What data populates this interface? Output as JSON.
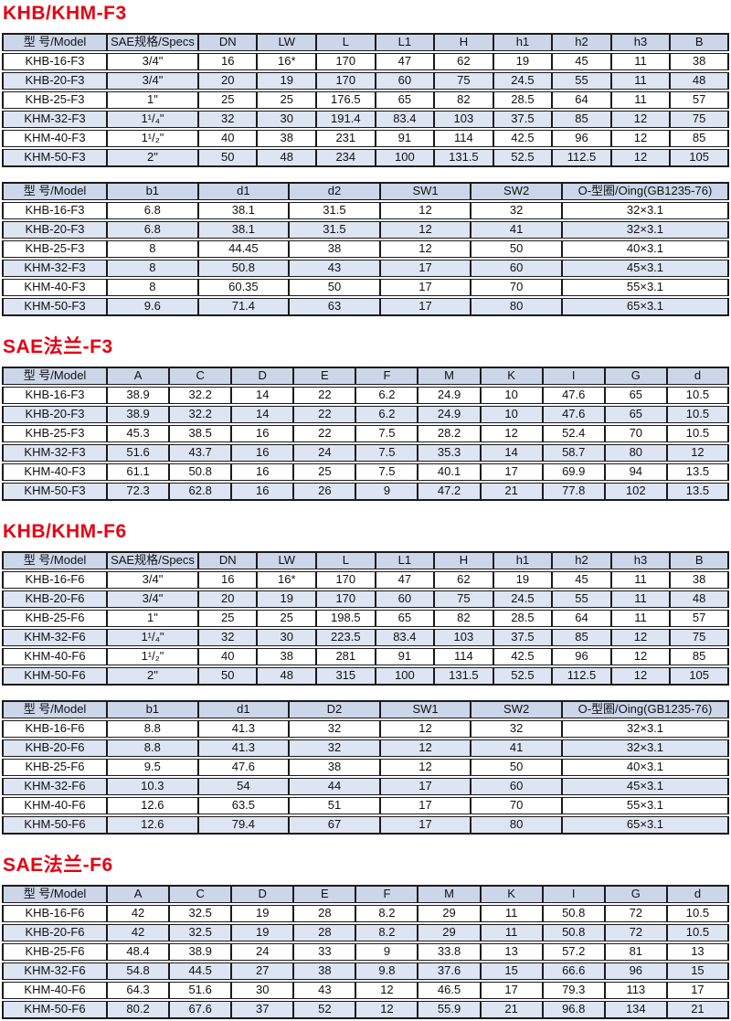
{
  "colors": {
    "title_red": "#e60012",
    "header_bg": "#ccd6e9",
    "stripe_bg": "#dde4f2",
    "border": "#1b1b1b"
  },
  "sections": [
    {
      "title": "KHB/KHM-F3",
      "tables": [
        {
          "columns": [
            "型 号/Model",
            "SAE规格/Specs",
            "DN",
            "LW",
            "L",
            "L1",
            "H",
            "h1",
            "h2",
            "h3",
            "B"
          ],
          "rows": [
            [
              "KHB-16-F3",
              "3/4\"",
              "16",
              "16*",
              "170",
              "47",
              "62",
              "19",
              "45",
              "11",
              "38"
            ],
            [
              "KHB-20-F3",
              "3/4\"",
              "20",
              "19",
              "170",
              "60",
              "75",
              "24.5",
              "55",
              "11",
              "48"
            ],
            [
              "KHB-25-F3",
              "1\"",
              "25",
              "25",
              "176.5",
              "65",
              "82",
              "28.5",
              "64",
              "11",
              "57"
            ],
            [
              "KHM-32-F3",
              "1¹/₄\"",
              "32",
              "30",
              "191.4",
              "83.4",
              "103",
              "37.5",
              "85",
              "12",
              "75"
            ],
            [
              "KHM-40-F3",
              "1¹/₂\"",
              "40",
              "38",
              "231",
              "91",
              "114",
              "42.5",
              "96",
              "12",
              "85"
            ],
            [
              "KHM-50-F3",
              "2\"",
              "50",
              "48",
              "234",
              "100",
              "131.5",
              "52.5",
              "112.5",
              "12",
              "105"
            ]
          ]
        },
        {
          "columns": [
            "型 号/Model",
            "b1",
            "d1",
            "d2",
            "SW1",
            "SW2",
            "O-型圈/Oing(GB1235-76)"
          ],
          "rows": [
            [
              "KHB-16-F3",
              "6.8",
              "38.1",
              "31.5",
              "12",
              "32",
              "32×3.1"
            ],
            [
              "KHB-20-F3",
              "6.8",
              "38.1",
              "31.5",
              "12",
              "41",
              "32×3.1"
            ],
            [
              "KHB-25-F3",
              "8",
              "44.45",
              "38",
              "12",
              "50",
              "40×3.1"
            ],
            [
              "KHM-32-F3",
              "8",
              "50.8",
              "43",
              "17",
              "60",
              "45×3.1"
            ],
            [
              "KHM-40-F3",
              "8",
              "60.35",
              "50",
              "17",
              "70",
              "55×3.1"
            ],
            [
              "KHM-50-F3",
              "9.6",
              "71.4",
              "63",
              "17",
              "80",
              "65×3.1"
            ]
          ]
        }
      ]
    },
    {
      "title": "SAE法兰-F3",
      "tables": [
        {
          "columns": [
            "型 号/Model",
            "A",
            "C",
            "D",
            "E",
            "F",
            "M",
            "K",
            "I",
            "G",
            "d"
          ],
          "rows": [
            [
              "KHB-16-F3",
              "38.9",
              "32.2",
              "14",
              "22",
              "6.2",
              "24.9",
              "10",
              "47.6",
              "65",
              "10.5"
            ],
            [
              "KHB-20-F3",
              "38.9",
              "32.2",
              "14",
              "22",
              "6.2",
              "24.9",
              "10",
              "47.6",
              "65",
              "10.5"
            ],
            [
              "KHB-25-F3",
              "45.3",
              "38.5",
              "16",
              "22",
              "7.5",
              "28.2",
              "12",
              "52.4",
              "70",
              "10.5"
            ],
            [
              "KHM-32-F3",
              "51.6",
              "43.7",
              "16",
              "24",
              "7.5",
              "35.3",
              "14",
              "58.7",
              "80",
              "12"
            ],
            [
              "KHM-40-F3",
              "61.1",
              "50.8",
              "16",
              "25",
              "7.5",
              "40.1",
              "17",
              "69.9",
              "94",
              "13.5"
            ],
            [
              "KHM-50-F3",
              "72.3",
              "62.8",
              "16",
              "26",
              "9",
              "47.2",
              "21",
              "77.8",
              "102",
              "13.5"
            ]
          ]
        }
      ]
    },
    {
      "title": "KHB/KHM-F6",
      "tables": [
        {
          "columns": [
            "型 号/Model",
            "SAE规格/Specs",
            "DN",
            "LW",
            "L",
            "L1",
            "H",
            "h1",
            "h2",
            "h3",
            "B"
          ],
          "rows": [
            [
              "KHB-16-F6",
              "3/4\"",
              "16",
              "16*",
              "170",
              "47",
              "62",
              "19",
              "45",
              "11",
              "38"
            ],
            [
              "KHB-20-F6",
              "3/4\"",
              "20",
              "19",
              "170",
              "60",
              "75",
              "24.5",
              "55",
              "11",
              "48"
            ],
            [
              "KHB-25-F6",
              "1\"",
              "25",
              "25",
              "198.5",
              "65",
              "82",
              "28.5",
              "64",
              "11",
              "57"
            ],
            [
              "KHM-32-F6",
              "1¹/₄\"",
              "32",
              "30",
              "223.5",
              "83.4",
              "103",
              "37.5",
              "85",
              "12",
              "75"
            ],
            [
              "KHM-40-F6",
              "1¹/₂\"",
              "40",
              "38",
              "281",
              "91",
              "114",
              "42.5",
              "96",
              "12",
              "85"
            ],
            [
              "KHM-50-F6",
              "2\"",
              "50",
              "48",
              "315",
              "100",
              "131.5",
              "52.5",
              "112.5",
              "12",
              "105"
            ]
          ]
        },
        {
          "columns": [
            "型 号/Model",
            "b1",
            "d1",
            "D2",
            "SW1",
            "SW2",
            "O-型圈/Oing(GB1235-76)"
          ],
          "rows": [
            [
              "KHB-16-F6",
              "8.8",
              "41.3",
              "32",
              "12",
              "32",
              "32×3.1"
            ],
            [
              "KHB-20-F6",
              "8.8",
              "41.3",
              "32",
              "12",
              "41",
              "32×3.1"
            ],
            [
              "KHB-25-F6",
              "9.5",
              "47.6",
              "38",
              "12",
              "50",
              "40×3.1"
            ],
            [
              "KHM-32-F6",
              "10.3",
              "54",
              "44",
              "17",
              "60",
              "45×3.1"
            ],
            [
              "KHM-40-F6",
              "12.6",
              "63.5",
              "51",
              "17",
              "70",
              "55×3.1"
            ],
            [
              "KHM-50-F6",
              "12.6",
              "79.4",
              "67",
              "17",
              "80",
              "65×3.1"
            ]
          ]
        }
      ]
    },
    {
      "title": "SAE法兰-F6",
      "tables": [
        {
          "columns": [
            "型 号/Model",
            "A",
            "C",
            "D",
            "E",
            "F",
            "M",
            "K",
            "I",
            "G",
            "d"
          ],
          "rows": [
            [
              "KHB-16-F6",
              "42",
              "32.5",
              "19",
              "28",
              "8.2",
              "29",
              "11",
              "50.8",
              "72",
              "10.5"
            ],
            [
              "KHB-20-F6",
              "42",
              "32.5",
              "19",
              "28",
              "8.2",
              "29",
              "11",
              "50.8",
              "72",
              "10.5"
            ],
            [
              "KHB-25-F6",
              "48.4",
              "38.9",
              "24",
              "33",
              "9",
              "33.8",
              "13",
              "57.2",
              "81",
              "13"
            ],
            [
              "KHM-32-F6",
              "54.8",
              "44.5",
              "27",
              "38",
              "9.8",
              "37.6",
              "15",
              "66.6",
              "96",
              "15"
            ],
            [
              "KHM-40-F6",
              "64.3",
              "51.6",
              "30",
              "43",
              "12",
              "46.5",
              "17",
              "79.3",
              "113",
              "17"
            ],
            [
              "KHM-50-F6",
              "80.2",
              "67.6",
              "37",
              "52",
              "12",
              "55.9",
              "21",
              "96.8",
              "134",
              "21"
            ]
          ]
        }
      ]
    }
  ]
}
